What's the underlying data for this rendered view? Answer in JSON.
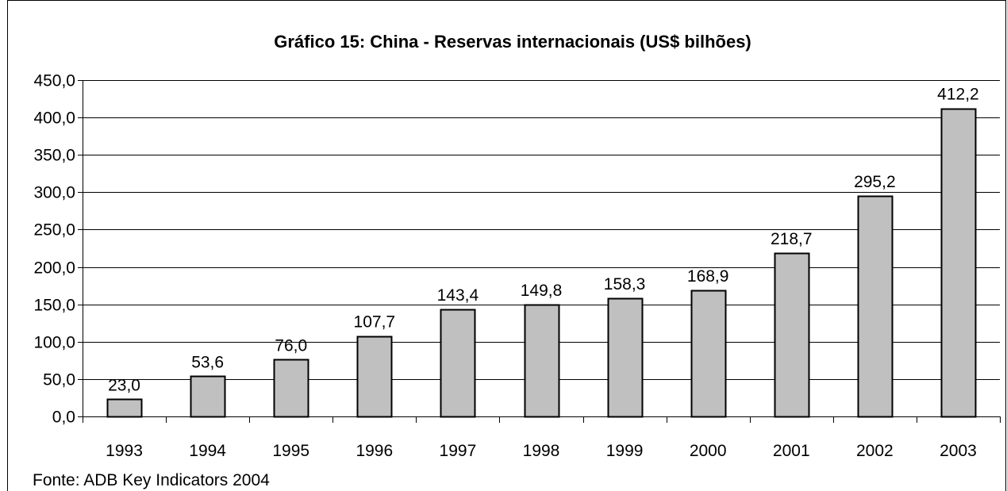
{
  "chart_data": {
    "type": "bar",
    "title": "Gráfico 15: China - Reservas internacionais (US$ bilhões)",
    "xlabel": "",
    "ylabel": "",
    "categories": [
      "1993",
      "1994",
      "1995",
      "1996",
      "1997",
      "1998",
      "1999",
      "2000",
      "2001",
      "2002",
      "2003"
    ],
    "values": [
      23.0,
      53.6,
      76.0,
      107.7,
      143.4,
      149.8,
      158.3,
      168.9,
      218.7,
      295.2,
      412.2
    ],
    "data_labels": [
      "23,0",
      "53,6",
      "76,0",
      "107,7",
      "143,4",
      "149,8",
      "158,3",
      "168,9",
      "218,7",
      "295,2",
      "412,2"
    ],
    "ylim": [
      0,
      450
    ],
    "yticks": [
      0,
      50,
      100,
      150,
      200,
      250,
      300,
      350,
      400,
      450
    ],
    "ytick_labels": [
      "0,0",
      "50,0",
      "100,0",
      "150,0",
      "200,0",
      "250,0",
      "300,0",
      "350,0",
      "400,0",
      "450,0"
    ],
    "grid": true,
    "legend": "none",
    "bar_color": "#c0c0c0",
    "source_note": "Fonte: ADB Key Indicators 2004"
  }
}
